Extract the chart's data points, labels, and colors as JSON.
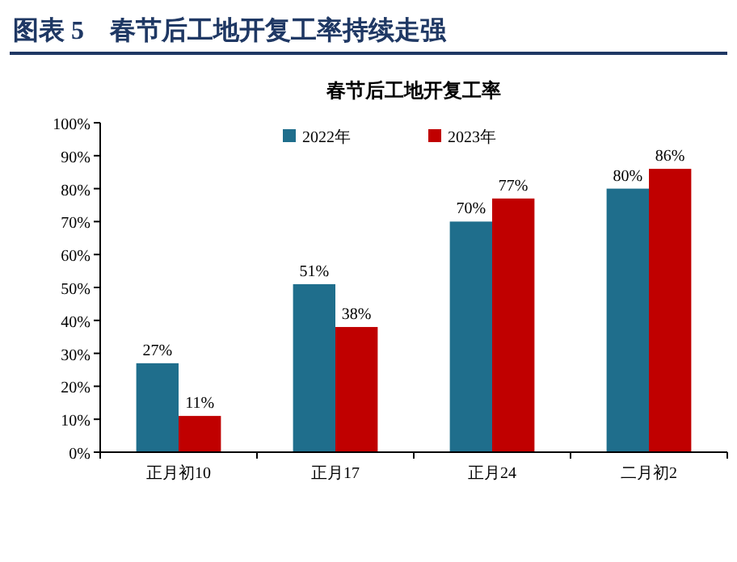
{
  "chart_data": {
    "type": "bar",
    "title": "图表 5　春节后工地开复工率持续走强",
    "subtitle": "春节后工地开复工率",
    "categories": [
      "正月初10",
      "正月17",
      "正月24",
      "二月初2"
    ],
    "series": [
      {
        "name": "2022年",
        "color": "#1f6e8c",
        "values": [
          27,
          51,
          70,
          80
        ],
        "value_labels": [
          "27%",
          "51%",
          "70%",
          "80%"
        ]
      },
      {
        "name": "2023年",
        "color": "#c00000",
        "values": [
          11,
          38,
          77,
          86
        ],
        "value_labels": [
          "11%",
          "38%",
          "77%",
          "86%"
        ]
      }
    ],
    "ylim": [
      0,
      100
    ],
    "yticks": [
      {
        "value": 0,
        "label": "0%"
      },
      {
        "value": 10,
        "label": "10%"
      },
      {
        "value": 20,
        "label": "20%"
      },
      {
        "value": 30,
        "label": "30%"
      },
      {
        "value": 40,
        "label": "40%"
      },
      {
        "value": 50,
        "label": "50%"
      },
      {
        "value": 60,
        "label": "60%"
      },
      {
        "value": 70,
        "label": "70%"
      },
      {
        "value": 80,
        "label": "80%"
      },
      {
        "value": 90,
        "label": "90%"
      },
      {
        "value": 100,
        "label": "100%"
      }
    ],
    "legend": "top",
    "grid": false
  }
}
